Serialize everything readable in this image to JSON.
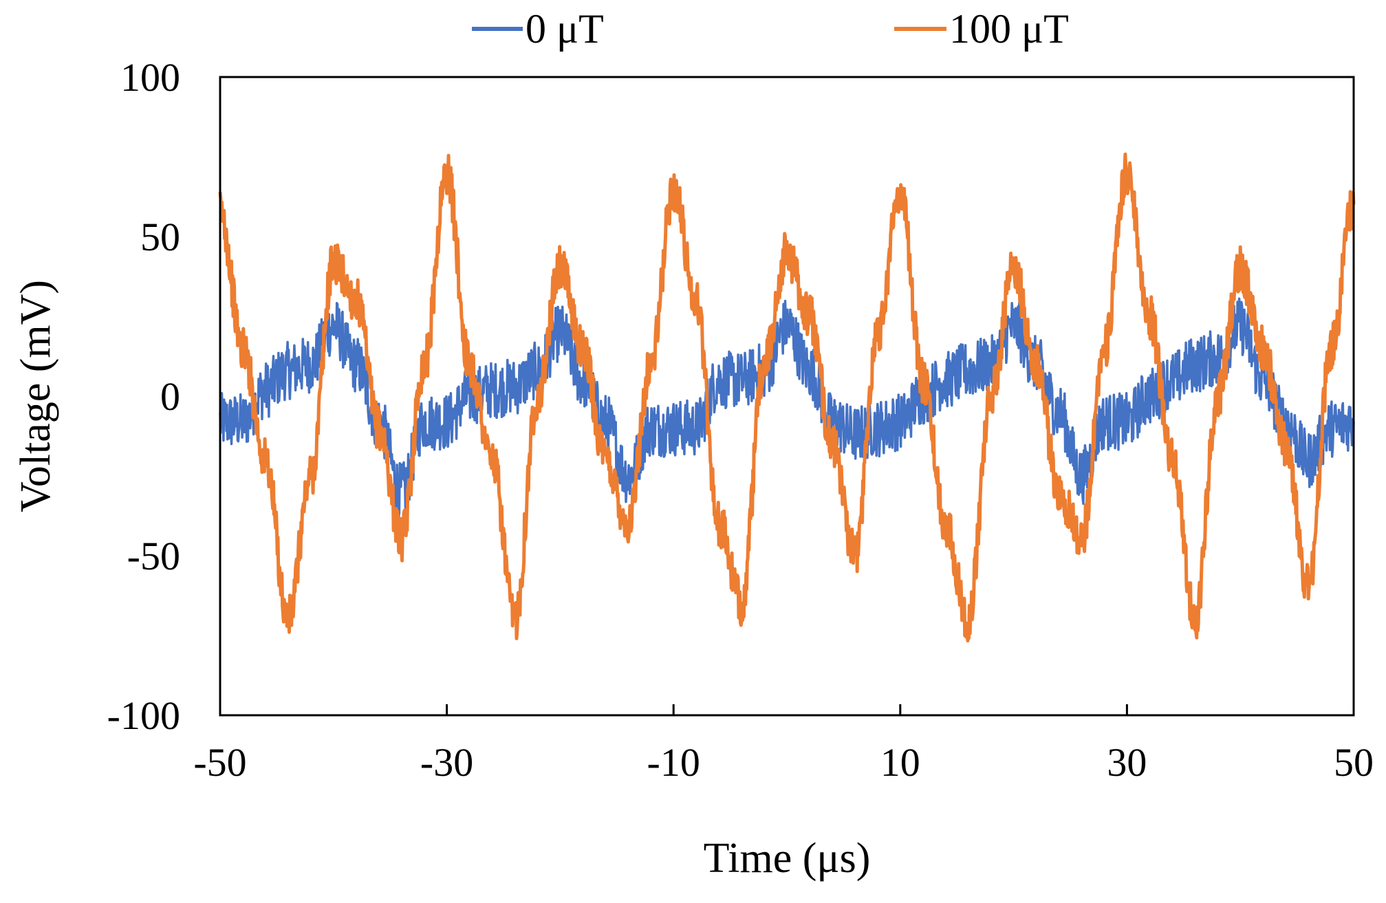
{
  "chart_data": {
    "type": "line",
    "title": "",
    "xlabel": "Time (μs)",
    "ylabel": "Voltage (mV)",
    "xlim": [
      -50,
      50
    ],
    "ylim": [
      -100,
      100
    ],
    "x_ticks": [
      -50,
      -30,
      -10,
      10,
      30,
      50
    ],
    "y_ticks": [
      -100,
      -50,
      0,
      50,
      100
    ],
    "x_tick_labels": [
      "-50",
      "-30",
      "-10",
      "10",
      "30",
      "50"
    ],
    "y_tick_labels": [
      "-100",
      "-50",
      "0",
      "50",
      "100"
    ],
    "grid": false,
    "legend_position": "top-center",
    "series": [
      {
        "name": "0 μT",
        "color": "#4472C4",
        "x": [
          -50,
          -48,
          -46,
          -44,
          -42,
          -40,
          -38,
          -36,
          -34,
          -32,
          -30,
          -28,
          -26,
          -24,
          -22,
          -20,
          -18,
          -16,
          -14,
          -12,
          -10,
          -8,
          -6,
          -4,
          -2,
          0,
          2,
          4,
          6,
          8,
          10,
          12,
          14,
          16,
          18,
          20,
          22,
          24,
          26,
          28,
          30,
          32,
          34,
          36,
          38,
          40,
          42,
          44,
          46,
          48,
          50
        ],
        "y": [
          -8,
          -8,
          2,
          8,
          10,
          22,
          10,
          -8,
          -30,
          -8,
          -8,
          0,
          2,
          3,
          8,
          20,
          5,
          -8,
          -25,
          -10,
          -10,
          -10,
          5,
          5,
          8,
          22,
          8,
          -8,
          -12,
          -10,
          -8,
          0,
          5,
          8,
          10,
          22,
          10,
          -5,
          -25,
          -8,
          -8,
          0,
          5,
          10,
          12,
          22,
          5,
          -8,
          -20,
          -10,
          -8
        ]
      },
      {
        "name": "100 μT",
        "color": "#ED7D31",
        "x": [
          -50,
          -48,
          -46,
          -44,
          -42,
          -40,
          -38,
          -36,
          -34,
          -32,
          -30,
          -28,
          -26,
          -24,
          -22,
          -20,
          -18,
          -16,
          -14,
          -12,
          -10,
          -8,
          -6,
          -4,
          -2,
          0,
          2,
          4,
          6,
          8,
          10,
          12,
          14,
          16,
          18,
          20,
          22,
          24,
          26,
          28,
          30,
          32,
          34,
          36,
          38,
          40,
          42,
          44,
          46,
          48,
          50
        ],
        "y": [
          58,
          15,
          -20,
          -70,
          -25,
          42,
          30,
          -10,
          -45,
          10,
          70,
          10,
          -20,
          -70,
          0,
          40,
          15,
          -20,
          -40,
          10,
          65,
          30,
          -40,
          -65,
          10,
          45,
          25,
          -15,
          -50,
          20,
          65,
          5,
          -40,
          -70,
          0,
          40,
          10,
          -30,
          -45,
          15,
          70,
          25,
          -20,
          -70,
          0,
          40,
          15,
          -15,
          -60,
          15,
          60
        ]
      }
    ]
  }
}
